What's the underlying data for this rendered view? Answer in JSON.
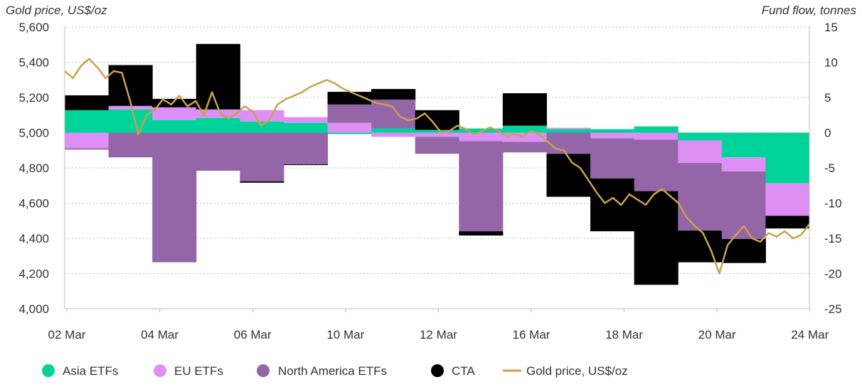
{
  "chart_data": {
    "type": "bar",
    "stacking": "diverging",
    "left_axis": {
      "title": "Gold price, US$/oz",
      "ticks": [
        "5,600",
        "5,400",
        "5,200",
        "5,000",
        "4,800",
        "4,600",
        "4,400",
        "4,200",
        "4,000"
      ],
      "range": [
        4000,
        5600
      ]
    },
    "right_axis": {
      "title": "Fund flow, tonnes",
      "ticks": [
        "15",
        "10",
        "5",
        "0",
        "-5",
        "-10",
        "-15",
        "-20",
        "-25"
      ],
      "range": [
        -25,
        15
      ]
    },
    "x_tick_labels": [
      "02 Mar",
      "04 Mar",
      "06 Mar",
      "10 Mar",
      "12 Mar",
      "16 Mar",
      "18 Mar",
      "20 Mar",
      "24 Mar"
    ],
    "grid": "horizontal dotted",
    "legend_position": "bottom",
    "legend": [
      "Asia ETFs",
      "EU ETFs",
      "North America ETFs",
      "CTA",
      "Gold price, US$/oz"
    ],
    "colors": {
      "asia": "#00d39a",
      "eu": "#dd8ff5",
      "na": "#9466a8",
      "cta": "#000000",
      "gold": "#c9a24b",
      "grid": "#bfbfbf",
      "axis": "#bfbfbf"
    },
    "days": [
      "02 Mar",
      "03 Mar",
      "04 Mar",
      "05 Mar",
      "06 Mar",
      "09 Mar",
      "10 Mar",
      "11 Mar",
      "12 Mar",
      "13 Mar",
      "16 Mar",
      "17 Mar",
      "18 Mar",
      "19 Mar",
      "20 Mar",
      "23 Mar",
      "24 Mar"
    ],
    "series": [
      {
        "name": "Asia ETFs",
        "key": "asia",
        "values": [
          3.2,
          3.3,
          1.8,
          2.1,
          1.6,
          1.4,
          -0.2,
          0.6,
          0.4,
          0.6,
          1.0,
          0.5,
          0.5,
          0.9,
          -1.1,
          -3.5,
          -7.2
        ]
      },
      {
        "name": "EU ETFs",
        "key": "eu",
        "values": [
          -2.2,
          0.5,
          1.8,
          1.2,
          1.6,
          0.8,
          1.4,
          -0.6,
          -0.6,
          -1.2,
          -1.3,
          0.2,
          -0.8,
          -1.0,
          -3.2,
          -2.0,
          -4.6
        ]
      },
      {
        "name": "North America ETFs",
        "key": "na",
        "values": [
          -0.2,
          -3.5,
          -18.4,
          -5.4,
          -6.9,
          -4.5,
          2.6,
          4.1,
          -2.4,
          -12.8,
          -1.5,
          -3.0,
          -5.7,
          -7.3,
          -9.6,
          -9.6,
          0.0
        ]
      },
      {
        "name": "CTA",
        "key": "cta",
        "values": [
          2.1,
          5.8,
          1.2,
          9.3,
          -0.2,
          -0.1,
          1.8,
          1.5,
          2.8,
          -0.6,
          4.6,
          -6.1,
          -7.5,
          -13.3,
          -4.5,
          -3.4,
          -1.8
        ]
      }
    ],
    "gold_price": [
      5350,
      5310,
      5380,
      5420,
      5370,
      5310,
      5350,
      5340,
      5180,
      4990,
      5100,
      5130,
      5190,
      5160,
      5210,
      5150,
      5180,
      5100,
      5230,
      5110,
      5080,
      5110,
      5150,
      5120,
      5040,
      5070,
      5160,
      5190,
      5210,
      5230,
      5260,
      5280,
      5300,
      5280,
      5250,
      5230,
      5210,
      5190,
      5170,
      5160,
      5150,
      5090,
      5070,
      5080,
      5110,
      5060,
      5000,
      5010,
      5040,
      5020,
      4990,
      5010,
      5030,
      5010,
      4980,
      4990,
      4980,
      5010,
      4990,
      4950,
      4910,
      4900,
      4830,
      4800,
      4730,
      4660,
      4600,
      4630,
      4590,
      4650,
      4620,
      4590,
      4650,
      4680,
      4640,
      4600,
      4520,
      4470,
      4430,
      4330,
      4200,
      4360,
      4420,
      4470,
      4400,
      4380,
      4430,
      4410,
      4440,
      4400,
      4420,
      4480
    ]
  }
}
